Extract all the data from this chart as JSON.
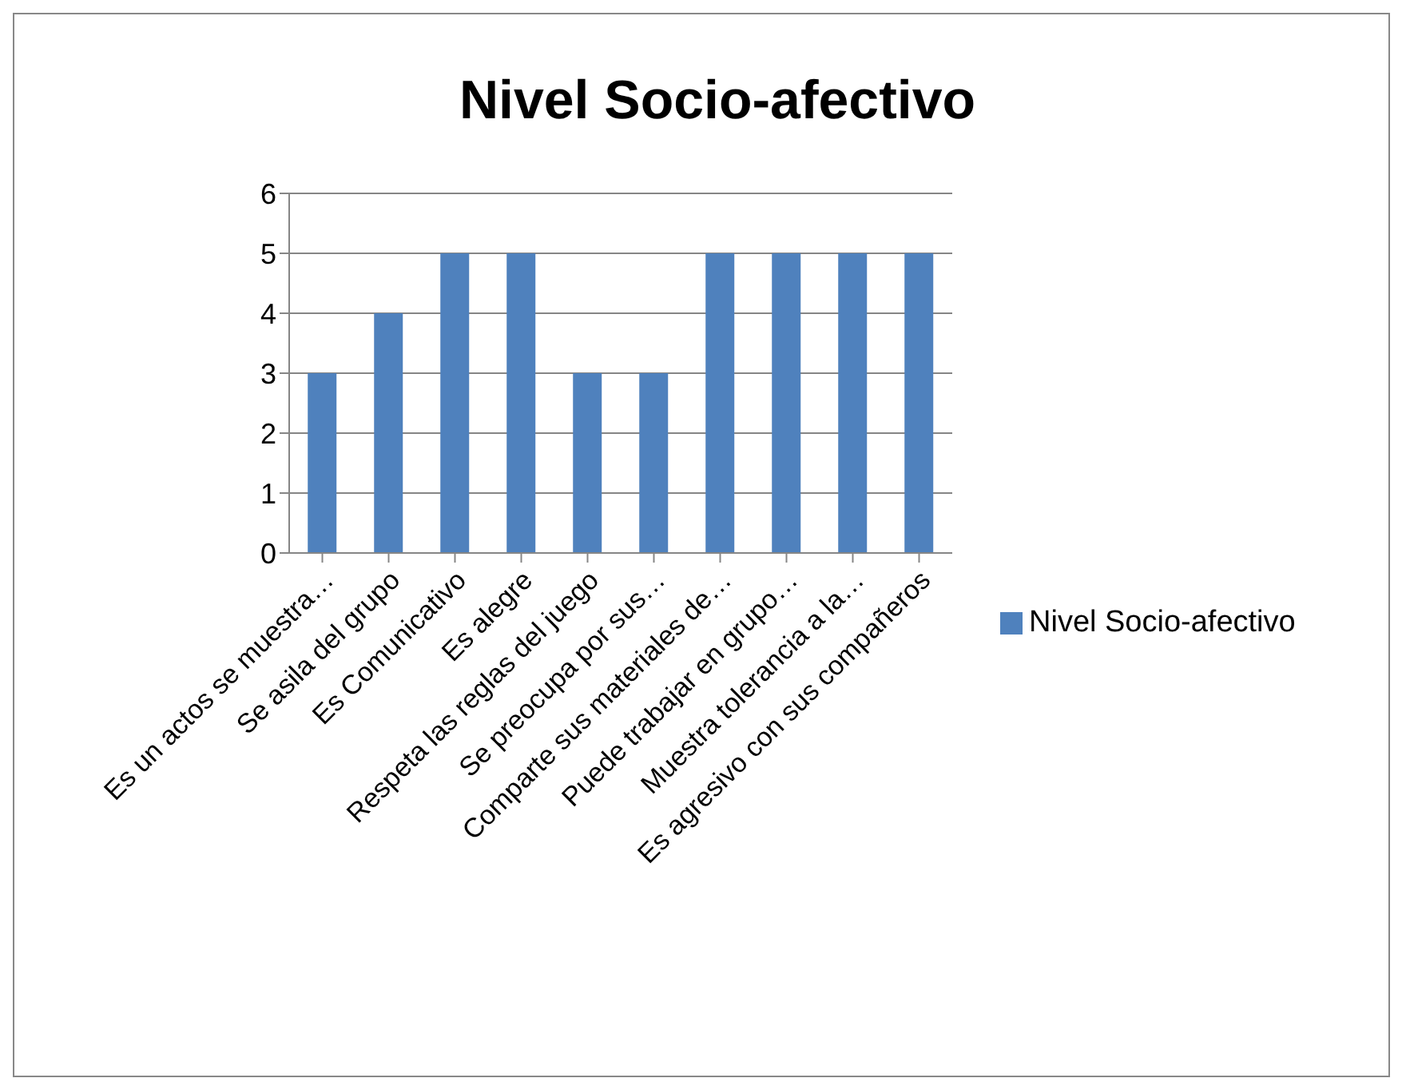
{
  "chart_data": {
    "type": "bar",
    "title": "Nivel Socio-afectivo",
    "categories": [
      "Es un actos se muestra…",
      "Se asila del grupo",
      "Es Comunicativo",
      "Es alegre",
      "Respeta las reglas del juego",
      "Se preocupa por sus…",
      "Comparte sus materiales de…",
      "Puede trabajar en grupo…",
      "Muestra tolerancia a la…",
      "Es agresivo con sus compañeros"
    ],
    "series": [
      {
        "name": "Nivel Socio-afectivo",
        "color": "#4f81bd",
        "values": [
          3,
          4,
          5,
          5,
          3,
          3,
          5,
          5,
          5,
          5
        ]
      }
    ],
    "ylim": [
      0,
      6
    ],
    "yticks": [
      0,
      1,
      2,
      3,
      4,
      5,
      6
    ],
    "grid": "y",
    "legend": "right"
  }
}
